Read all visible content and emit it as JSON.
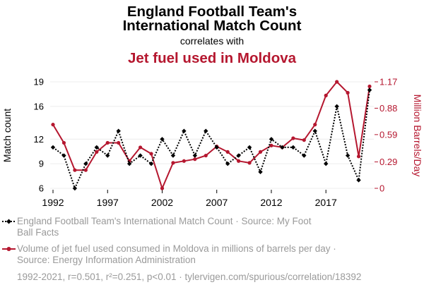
{
  "title_lines": [
    "England Football Team's",
    "International Match Count"
  ],
  "subtitle": "correlates with",
  "series2_title": "Jet fuel used in Moldova",
  "colors": {
    "series1": "#000000",
    "series2": "#b5172f",
    "grid": "#ececec",
    "muted_text": "#9a9a9a"
  },
  "legend": {
    "series1_lines": [
      "England Football Team's International Match Count · Source: My Foot",
      "Ball Facts"
    ],
    "series2_lines": [
      "Volume of jet fuel used consumed in Moldova in millions of barrels per day ·",
      "Source: Energy Information Administration"
    ]
  },
  "footer": "1992-2021, r=0.501, r²=0.251, p<0.01 · tylervigen.com/spurious/correlation/18392",
  "chart_data": {
    "type": "line",
    "x": [
      1992,
      1993,
      1994,
      1995,
      1996,
      1997,
      1998,
      1999,
      2000,
      2001,
      2002,
      2003,
      2004,
      2005,
      2006,
      2007,
      2008,
      2009,
      2010,
      2011,
      2012,
      2013,
      2014,
      2015,
      2016,
      2017,
      2018,
      2019,
      2020,
      2021
    ],
    "x_ticks": [
      1992,
      1997,
      2002,
      2007,
      2012,
      2017
    ],
    "series": [
      {
        "name": "England Football Team's International Match Count",
        "axis": "left",
        "line_style": "dotted",
        "marker": "diamond",
        "values": [
          11,
          10,
          6,
          9,
          11,
          10,
          13,
          9,
          10,
          9,
          12,
          10,
          13,
          10,
          13,
          11,
          9,
          10,
          11,
          8,
          12,
          11,
          11,
          10,
          13,
          9,
          16,
          10,
          7,
          18
        ]
      },
      {
        "name": "Volume of jet fuel used consumed in Moldova in millions of barrels per day",
        "axis": "right",
        "line_style": "solid",
        "marker": "circle",
        "values": [
          0.7,
          0.5,
          0.2,
          0.2,
          0.4,
          0.5,
          0.5,
          0.3,
          0.45,
          0.38,
          0.0,
          0.28,
          0.3,
          0.32,
          0.36,
          0.46,
          0.4,
          0.3,
          0.28,
          0.4,
          0.47,
          0.45,
          0.55,
          0.53,
          0.7,
          1.02,
          1.17,
          1.05,
          0.35,
          1.12
        ]
      }
    ],
    "y_left": {
      "label": "Match count",
      "ticks": [
        6,
        9,
        12,
        16,
        19
      ],
      "ticks_display": [
        "6",
        "9",
        "12",
        "16",
        "19"
      ],
      "range": [
        6,
        19
      ]
    },
    "y_right": {
      "label": "Million Barrels/Day",
      "ticks": [
        0,
        0.29,
        0.59,
        0.88,
        1.17
      ],
      "ticks_display": [
        "0",
        "0.29",
        "0.59",
        "0.88",
        "1.17"
      ],
      "range": [
        0,
        1.17
      ]
    },
    "grid": true,
    "legend_position": "bottom"
  }
}
